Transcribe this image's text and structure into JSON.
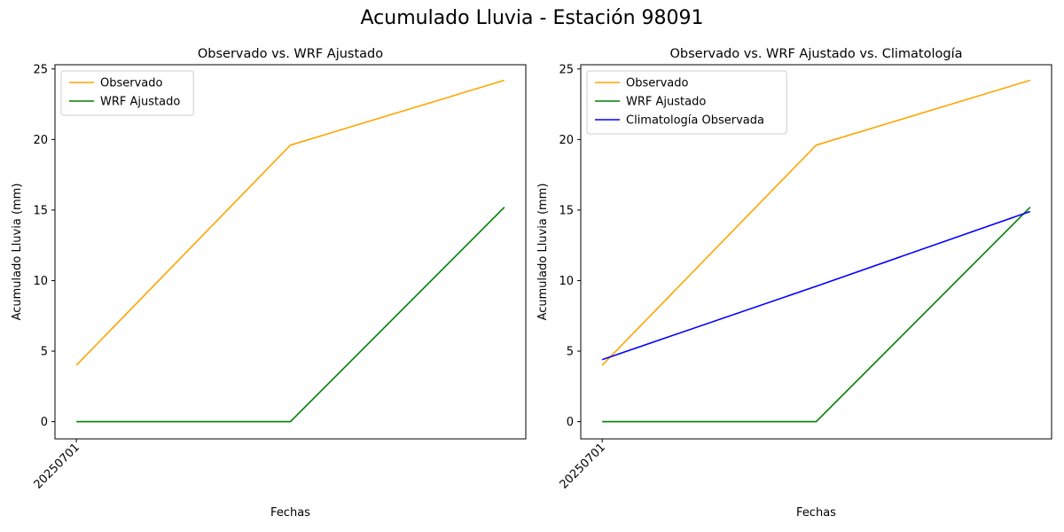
{
  "figure": {
    "title": "Acumulado Lluvia - Estación 98091"
  },
  "chart_data": [
    {
      "type": "line",
      "title": "Observado vs. WRF Ajustado",
      "xlabel": "Fechas",
      "ylabel": "Acumulado Lluvia (mm)",
      "x": [
        0,
        1,
        2
      ],
      "xtick_positions": [
        0
      ],
      "xtick_labels": [
        "20250701"
      ],
      "xlim": [
        -0.1,
        2.1
      ],
      "ylim": [
        -1.22,
        25.3
      ],
      "yticks": [
        0,
        5,
        10,
        15,
        20,
        25
      ],
      "grid": false,
      "legend": "top-left",
      "series": [
        {
          "name": "Observado",
          "color": "#ffa500",
          "values": [
            4.0,
            19.6,
            24.2
          ]
        },
        {
          "name": "WRF Ajustado",
          "color": "#008000",
          "values": [
            0.0,
            0.0,
            15.2
          ]
        }
      ]
    },
    {
      "type": "line",
      "title": "Observado vs. WRF Ajustado vs. Climatología",
      "xlabel": "Fechas",
      "ylabel": "Acumulado Lluvia (mm)",
      "x": [
        0,
        1,
        2
      ],
      "xtick_positions": [
        0
      ],
      "xtick_labels": [
        "20250701"
      ],
      "xlim": [
        -0.1,
        2.1
      ],
      "ylim": [
        -1.22,
        25.3
      ],
      "yticks": [
        0,
        5,
        10,
        15,
        20,
        25
      ],
      "grid": false,
      "legend": "top-left",
      "series": [
        {
          "name": "Observado",
          "color": "#ffa500",
          "values": [
            4.0,
            19.6,
            24.2
          ]
        },
        {
          "name": "WRF Ajustado",
          "color": "#008000",
          "values": [
            0.0,
            0.0,
            15.2
          ]
        },
        {
          "name": "Climatología Observada",
          "color": "#0000ff",
          "values": [
            4.4,
            9.6,
            14.9
          ]
        }
      ]
    }
  ]
}
